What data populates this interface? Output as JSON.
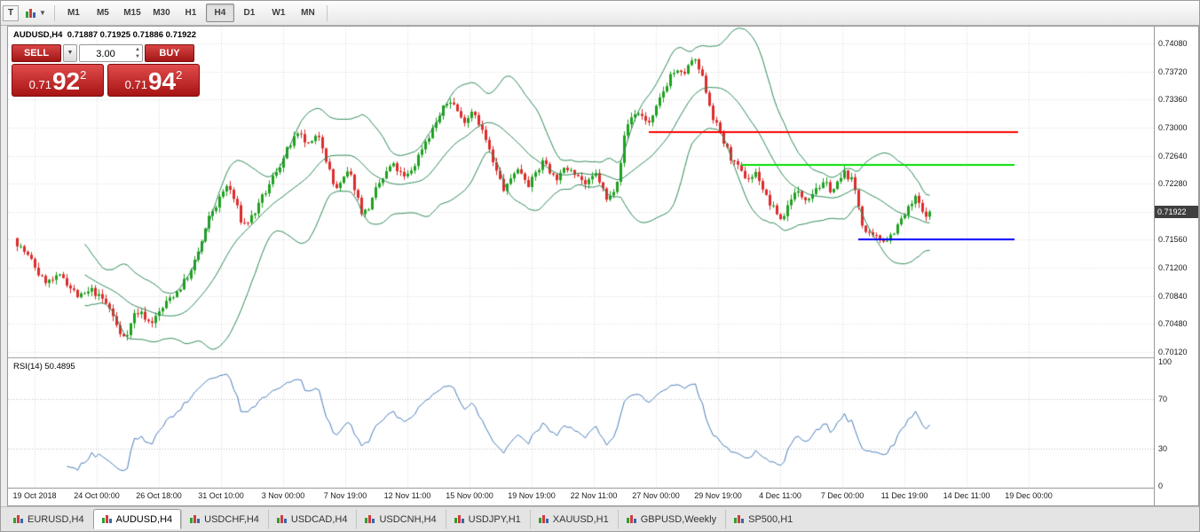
{
  "toolbar": {
    "grip_label": "T",
    "timeframes": [
      {
        "label": "M1",
        "active": false
      },
      {
        "label": "M5",
        "active": false
      },
      {
        "label": "M15",
        "active": false
      },
      {
        "label": "M30",
        "active": false
      },
      {
        "label": "H1",
        "active": false
      },
      {
        "label": "H4",
        "active": true
      },
      {
        "label": "D1",
        "active": false
      },
      {
        "label": "W1",
        "active": false
      },
      {
        "label": "MN",
        "active": false
      }
    ]
  },
  "chart": {
    "symbol_header": "AUDUSD,H4  0.71887 0.71925 0.71886 0.71922",
    "rsi_label": "RSI(14) 50.4895",
    "trade_panel": {
      "sell_label": "SELL",
      "buy_label": "BUY",
      "volume": "3.00",
      "sell_price": {
        "prefix": "0.71",
        "big": "92",
        "sup": "2"
      },
      "buy_price": {
        "prefix": "0.71",
        "big": "94",
        "sup": "2"
      }
    },
    "current_price": {
      "text": "0.71922",
      "price": 0.71922
    },
    "price_axis": [
      {
        "text": "0.74080",
        "price": 0.7408
      },
      {
        "text": "0.73720",
        "price": 0.7372
      },
      {
        "text": "0.73360",
        "price": 0.7336
      },
      {
        "text": "0.73000",
        "price": 0.73
      },
      {
        "text": "0.72640",
        "price": 0.7264
      },
      {
        "text": "0.72280",
        "price": 0.7228
      },
      {
        "text": "0.71920",
        "price": 0.7192
      },
      {
        "text": "0.71560",
        "price": 0.7156
      },
      {
        "text": "0.71200",
        "price": 0.712
      },
      {
        "text": "0.70840",
        "price": 0.7084
      },
      {
        "text": "0.70480",
        "price": 0.7048
      },
      {
        "text": "0.70120",
        "price": 0.7012
      }
    ],
    "rsi_axis": [
      {
        "text": "100",
        "value": 100
      },
      {
        "text": "70",
        "value": 70
      },
      {
        "text": "30",
        "value": 30
      },
      {
        "text": "0",
        "value": 0
      }
    ],
    "time_axis": [
      "19 Oct 2018",
      "24 Oct 00:00",
      "26 Oct 18:00",
      "31 Oct 10:00",
      "3 Nov 00:00",
      "7 Nov 19:00",
      "12 Nov 11:00",
      "15 Nov 00:00",
      "19 Nov 19:00",
      "22 Nov 11:00",
      "27 Nov 00:00",
      "29 Nov 19:00",
      "4 Dec 11:00",
      "7 Dec 00:00",
      "11 Dec 19:00",
      "14 Dec 11:00",
      "19 Dec 00:00"
    ]
  },
  "chart_data": {
    "type": "candlestick",
    "symbol": "AUDUSD",
    "timeframe": "H4",
    "current_bar": {
      "open": 0.71887,
      "high": 0.71925,
      "low": 0.71886,
      "close": 0.71922
    },
    "last_close": 0.71922,
    "candle_count": 258,
    "price_range": {
      "top": 0.743,
      "bottom": 0.7006
    },
    "price_path": [
      [
        0,
        0.7158
      ],
      [
        4,
        0.7128
      ],
      [
        8,
        0.71
      ],
      [
        14,
        0.7106
      ],
      [
        18,
        0.7078
      ],
      [
        22,
        0.709
      ],
      [
        27,
        0.7062
      ],
      [
        30,
        0.7022
      ],
      [
        34,
        0.707
      ],
      [
        38,
        0.7048
      ],
      [
        44,
        0.7084
      ],
      [
        50,
        0.712
      ],
      [
        55,
        0.7192
      ],
      [
        60,
        0.723
      ],
      [
        64,
        0.7168
      ],
      [
        70,
        0.7212
      ],
      [
        75,
        0.7262
      ],
      [
        79,
        0.729
      ],
      [
        83,
        0.7272
      ],
      [
        86,
        0.7292
      ],
      [
        90,
        0.7212
      ],
      [
        94,
        0.7244
      ],
      [
        98,
        0.7182
      ],
      [
        102,
        0.7224
      ],
      [
        106,
        0.7254
      ],
      [
        110,
        0.7228
      ],
      [
        115,
        0.7284
      ],
      [
        120,
        0.7322
      ],
      [
        123,
        0.734
      ],
      [
        126,
        0.7302
      ],
      [
        129,
        0.7332
      ],
      [
        132,
        0.7288
      ],
      [
        135,
        0.724
      ],
      [
        138,
        0.7212
      ],
      [
        141,
        0.7254
      ],
      [
        145,
        0.7228
      ],
      [
        149,
        0.7262
      ],
      [
        152,
        0.7232
      ],
      [
        157,
        0.7254
      ],
      [
        161,
        0.7222
      ],
      [
        164,
        0.724
      ],
      [
        167,
        0.7194
      ],
      [
        170,
        0.7252
      ],
      [
        172,
        0.7312
      ],
      [
        175,
        0.7324
      ],
      [
        179,
        0.7302
      ],
      [
        182,
        0.7342
      ],
      [
        185,
        0.738
      ],
      [
        188,
        0.7362
      ],
      [
        191,
        0.7392
      ],
      [
        194,
        0.735
      ],
      [
        197,
        0.7304
      ],
      [
        201,
        0.7262
      ],
      [
        205,
        0.723
      ],
      [
        209,
        0.7244
      ],
      [
        212,
        0.72
      ],
      [
        216,
        0.7178
      ],
      [
        219,
        0.7224
      ],
      [
        222,
        0.7208
      ],
      [
        226,
        0.7232
      ],
      [
        230,
        0.7218
      ],
      [
        234,
        0.7244
      ],
      [
        236,
        0.7228
      ],
      [
        239,
        0.7162
      ],
      [
        242,
        0.715
      ],
      [
        246,
        0.7162
      ],
      [
        249,
        0.718
      ],
      [
        251,
        0.7192
      ],
      [
        254,
        0.7212
      ],
      [
        256,
        0.7176
      ],
      [
        257,
        0.7192
      ]
    ],
    "indicators": {
      "bollinger": {
        "period": 20,
        "deviation": 2,
        "color": "#2e8b57"
      },
      "rsi": {
        "period": 14,
        "display_value": 50.4895,
        "color": "#4a7ebb",
        "levels": [
          30,
          70
        ]
      }
    },
    "horizontal_lines": [
      {
        "color": "#ff0000",
        "price": 0.7294,
        "from_index": 178,
        "to_index": 282
      },
      {
        "color": "#00dd00",
        "price": 0.7252,
        "from_index": 204,
        "to_index": 281
      },
      {
        "color": "#0000ff",
        "price": 0.7157,
        "from_index": 237,
        "to_index": 281
      }
    ],
    "colors": {
      "up": "#1fa11f",
      "down": "#dd2c2c",
      "grid": "#d9d9d9",
      "rsi_level": "#bdbdbd",
      "background": "#ffffff"
    }
  },
  "tabs": [
    {
      "label": "EURUSD,H4",
      "active": false
    },
    {
      "label": "AUDUSD,H4",
      "active": true
    },
    {
      "label": "USDCHF,H4",
      "active": false
    },
    {
      "label": "USDCAD,H4",
      "active": false
    },
    {
      "label": "USDCNH,H4",
      "active": false
    },
    {
      "label": "USDJPY,H1",
      "active": false
    },
    {
      "label": "XAUUSD,H1",
      "active": false
    },
    {
      "label": "GBPUSD,Weekly",
      "active": false
    },
    {
      "label": "SP500,H1",
      "active": false
    }
  ]
}
